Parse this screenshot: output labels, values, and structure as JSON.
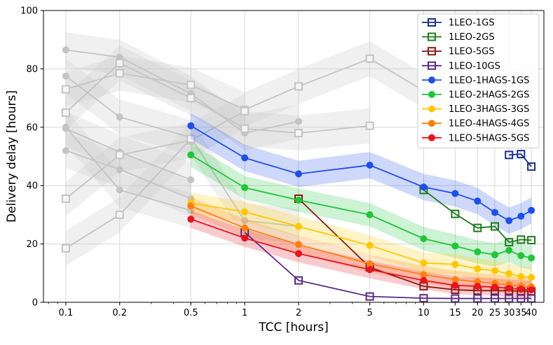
{
  "chart_data": {
    "type": "line",
    "title": "",
    "xlabel": "TCC [hours]",
    "ylabel": "Delivery delay [hours]",
    "xscale": "log",
    "xlim": [
      0.075,
      47
    ],
    "ylim": [
      0,
      100
    ],
    "grid": true,
    "legend_location": "top-right",
    "x_ticks": [
      0.1,
      0.2,
      0.5,
      1,
      2,
      5,
      10,
      15,
      20,
      25,
      30,
      35,
      40
    ],
    "x_tick_labels": [
      "0.1",
      "0.2",
      "0.5",
      "1",
      "2",
      "5",
      "10",
      "15",
      "20",
      "25",
      "30",
      "35",
      "40"
    ],
    "y_ticks": [
      0,
      20,
      40,
      60,
      80,
      100
    ],
    "y_tick_labels": [
      "0",
      "20",
      "40",
      "60",
      "80",
      "100"
    ],
    "background_series": [
      {
        "marker": "circle",
        "x": [
          0.1,
          0.2,
          0.5,
          1,
          2
        ],
        "y": [
          86.5,
          84.0,
          71.5,
          58.0,
          62.0
        ]
      },
      {
        "marker": "circle",
        "x": [
          0.1,
          0.2,
          0.5,
          1,
          2
        ],
        "y": [
          77.5,
          63.5,
          56.5,
          28.0,
          26.0
        ]
      },
      {
        "marker": "circle",
        "x": [
          0.1,
          0.2,
          0.5
        ],
        "y": [
          59.5,
          51.5,
          42.0
        ]
      },
      {
        "marker": "circle",
        "x": [
          0.1,
          0.2,
          0.5
        ],
        "y": [
          52.0,
          45.5,
          35.5
        ]
      },
      {
        "marker": "circle",
        "x": [
          0.1,
          0.2,
          0.5
        ],
        "y": [
          60.0,
          38.5,
          31.5
        ]
      },
      {
        "marker": "square",
        "x": [
          0.1,
          0.2,
          0.5,
          1,
          2,
          5,
          10
        ],
        "y": [
          73.0,
          78.5,
          74.5,
          66.0,
          74.0,
          83.5,
          72.5
        ]
      },
      {
        "marker": "square",
        "x": [
          0.1,
          0.2,
          0.5,
          1,
          2,
          5
        ],
        "y": [
          65.0,
          82.0,
          70.0,
          59.5,
          58.0,
          60.5
        ]
      },
      {
        "marker": "square",
        "x": [
          0.1,
          0.2,
          0.5,
          1
        ],
        "y": [
          35.5,
          50.5,
          55.5,
          65.5
        ]
      },
      {
        "marker": "square",
        "x": [
          0.1,
          0.2,
          0.5
        ],
        "y": [
          18.5,
          30.0,
          56.0
        ]
      }
    ],
    "series": [
      {
        "name": "1LEO-1GS",
        "color": "#1a2f8c",
        "marker": "square",
        "x": [
          30,
          35,
          40
        ],
        "y": [
          50.5,
          50.8,
          46.5
        ],
        "band": 0
      },
      {
        "name": "1LEO-2GS",
        "color": "#1f7a1f",
        "marker": "square",
        "x": [
          10,
          15,
          20,
          25,
          30,
          35,
          40
        ],
        "y": [
          38.5,
          30.3,
          25.5,
          26.0,
          20.6,
          21.5,
          21.3
        ],
        "band": 0
      },
      {
        "name": "1LEO-5GS",
        "color": "#8b1a1a",
        "marker": "square",
        "x": [
          2,
          5,
          10,
          15,
          20,
          25,
          30,
          35,
          40
        ],
        "y": [
          35.5,
          12.0,
          5.5,
          4.3,
          4.0,
          4.0,
          4.0,
          3.8,
          3.8
        ],
        "band": 0
      },
      {
        "name": "1LEO-10GS",
        "color": "#5b2a86",
        "marker": "square",
        "x": [
          1,
          2,
          5,
          10,
          15,
          20,
          25,
          30,
          35,
          40
        ],
        "y": [
          24.0,
          7.5,
          2.0,
          1.4,
          1.3,
          1.3,
          1.3,
          1.3,
          1.3,
          1.3
        ],
        "band": 0
      },
      {
        "name": "1LEO-1HAGS-1GS",
        "color": "#1f4fe8",
        "marker": "circle",
        "x": [
          0.5,
          1,
          2,
          5,
          10,
          15,
          20,
          25,
          30,
          35,
          40
        ],
        "y": [
          60.5,
          49.5,
          44.0,
          47.0,
          39.5,
          37.3,
          34.7,
          30.8,
          28.0,
          29.5,
          31.5
        ],
        "band": 4.5
      },
      {
        "name": "1LEO-2HAGS-2GS",
        "color": "#22c43a",
        "marker": "circle",
        "x": [
          0.5,
          1,
          2,
          5,
          10,
          15,
          20,
          25,
          30,
          35,
          40
        ],
        "y": [
          50.5,
          39.3,
          35.0,
          30.0,
          21.8,
          19.3,
          17.3,
          16.3,
          17.8,
          16.0,
          15.2
        ],
        "band": 4.0
      },
      {
        "name": "1LEO-3HAGS-3GS",
        "color": "#ffc800",
        "marker": "circle",
        "x": [
          0.5,
          1,
          2,
          5,
          10,
          15,
          20,
          25,
          30,
          35,
          40
        ],
        "y": [
          34.0,
          31.0,
          26.0,
          19.5,
          13.5,
          13.0,
          11.5,
          10.8,
          9.8,
          8.8,
          8.5
        ],
        "band": 3.5
      },
      {
        "name": "1LEO-4HAGS-4GS",
        "color": "#ff8010",
        "marker": "circle",
        "x": [
          0.5,
          1,
          2,
          5,
          10,
          15,
          20,
          25,
          30,
          35,
          40
        ],
        "y": [
          33.0,
          25.5,
          19.8,
          13.2,
          9.5,
          7.8,
          7.0,
          6.5,
          6.0,
          5.5,
          5.3
        ],
        "band": 3.0
      },
      {
        "name": "1LEO-5HAGS-5GS",
        "color": "#e8141e",
        "marker": "circle",
        "x": [
          0.5,
          1,
          2,
          5,
          10,
          15,
          20,
          25,
          30,
          35,
          40
        ],
        "y": [
          28.5,
          22.0,
          16.7,
          11.2,
          7.5,
          5.8,
          5.5,
          5.2,
          4.8,
          4.5,
          4.3
        ],
        "band": 3.0
      }
    ]
  }
}
